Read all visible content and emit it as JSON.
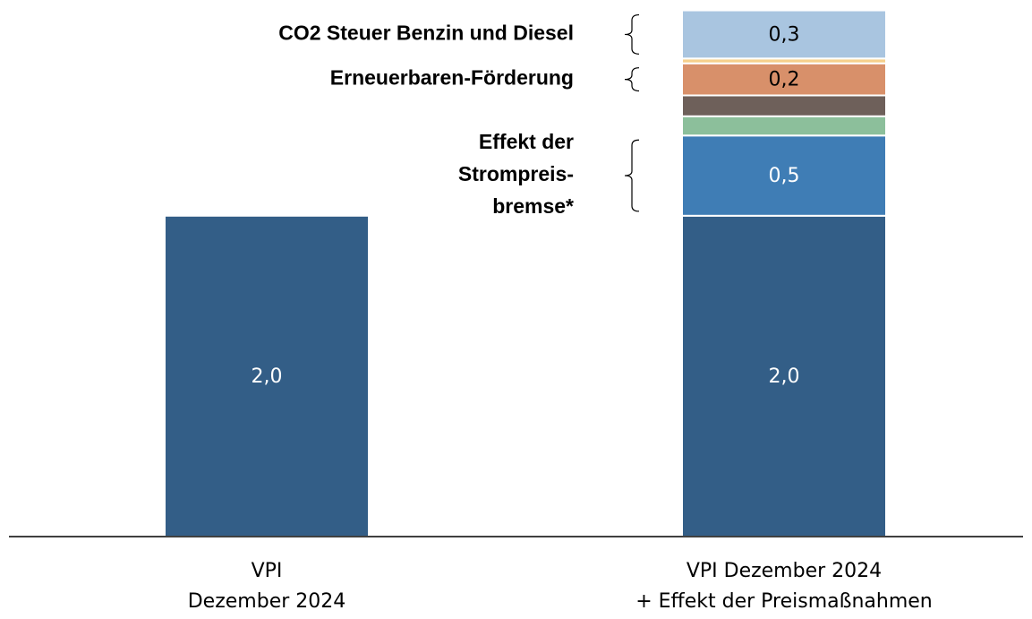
{
  "chart_data": {
    "type": "stacked_bar",
    "categories": [
      [
        "VPI",
        "Dezember 2024"
      ],
      [
        "VPI  Dezember 2024",
        "+ Effekt der Preismaßnahmen"
      ]
    ],
    "series": [
      {
        "color": "#335e87",
        "values": [
          2.0,
          2.0
        ],
        "value_labels": [
          "2,0",
          "2,0"
        ],
        "label_color": "#ffffff"
      },
      {
        "name": [
          "Effekt der",
          "Strompreis-",
          "bremse*"
        ],
        "color": "#3f7db5",
        "values": [
          null,
          0.5
        ],
        "value_labels": [
          null,
          "0,5"
        ],
        "label_color": "#ffffff"
      },
      {
        "color": "#8cbf9b",
        "values": [
          null,
          0.12
        ]
      },
      {
        "color": "#6e605a",
        "values": [
          null,
          0.13
        ]
      },
      {
        "name": [
          "Erneuerbaren-Förderung"
        ],
        "color": "#d8906a",
        "values": [
          null,
          0.2
        ],
        "value_labels": [
          null,
          "0,2"
        ],
        "label_color": "#000000"
      },
      {
        "color": "#f6d08c",
        "values": [
          null,
          0.03
        ]
      },
      {
        "name": [
          "CO2 Steuer Benzin und Diesel"
        ],
        "color": "#a9c5e0",
        "values": [
          null,
          0.3
        ],
        "value_labels": [
          null,
          "0,3"
        ],
        "label_color": "#000000"
      }
    ],
    "ylim": [
      0,
      3.3
    ]
  }
}
